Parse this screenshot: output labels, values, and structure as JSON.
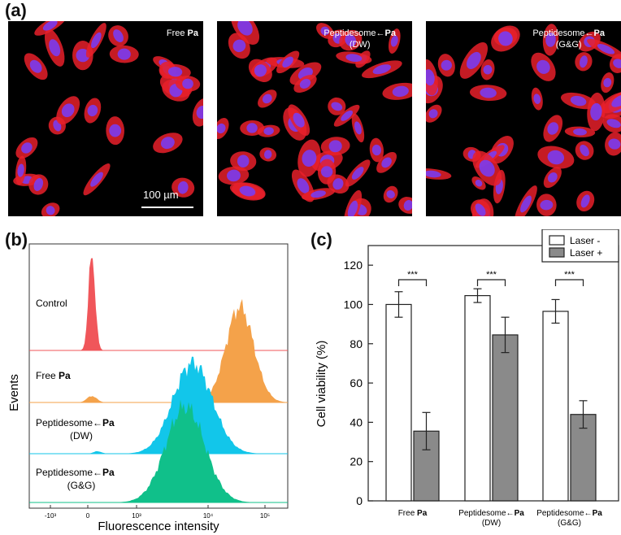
{
  "panel_a": {
    "letter": "(a)",
    "images": [
      {
        "label": "Free",
        "bold": "Pa",
        "sub": ""
      },
      {
        "label": "Peptidesome←",
        "bold": "Pa",
        "sub": "(DW)"
      },
      {
        "label": "Peptidesome←",
        "bold": "Pa",
        "sub": "(G&G)"
      }
    ],
    "scale_bar": "100 µm",
    "colors": {
      "cell": "#e8202a",
      "nucleus": "#7a3cf0"
    }
  },
  "panel_b": {
    "letter": "(b)",
    "ylabel": "Events",
    "xlabel": "Fluorescence intensity",
    "ticks": [
      "-10³",
      "0",
      "10³",
      "10⁴",
      "10⁵"
    ],
    "samples": [
      {
        "label": "Control",
        "bold": "",
        "sub": "",
        "color": "#f0565a"
      },
      {
        "label": "Free ",
        "bold": "Pa",
        "sub": "",
        "color": "#f4a24a"
      },
      {
        "label": "Peptidesome←",
        "bold": "Pa",
        "sub": "(DW)",
        "color": "#12c6ea"
      },
      {
        "label": "Peptidesome←",
        "bold": "Pa",
        "sub": "(G&G)",
        "color": "#10c08a"
      }
    ]
  },
  "chart_data": {
    "type": "bar",
    "title": "",
    "xlabel": "",
    "ylabel": "Cell viability (%)",
    "ylim": [
      0,
      130
    ],
    "yticks": [
      0,
      20,
      40,
      60,
      80,
      100,
      120
    ],
    "categories": [
      {
        "main": "Free ",
        "bold": "Pa",
        "sub": ""
      },
      {
        "main": "Peptidesome←",
        "bold": "Pa",
        "sub": "(DW)"
      },
      {
        "main": "Peptidesome←",
        "bold": "Pa",
        "sub": "(G&G)"
      }
    ],
    "series": [
      {
        "name": "Laser -",
        "color": "#ffffff",
        "values": [
          100,
          104.5,
          96.5
        ],
        "errors": [
          6.5,
          3.5,
          6
        ]
      },
      {
        "name": "Laser +",
        "color": "#8a8a8a",
        "values": [
          35.5,
          84.5,
          44
        ],
        "errors": [
          9.5,
          9,
          7
        ]
      }
    ],
    "significance": [
      "***",
      "***",
      "***"
    ],
    "panel_letter": "(c)"
  }
}
